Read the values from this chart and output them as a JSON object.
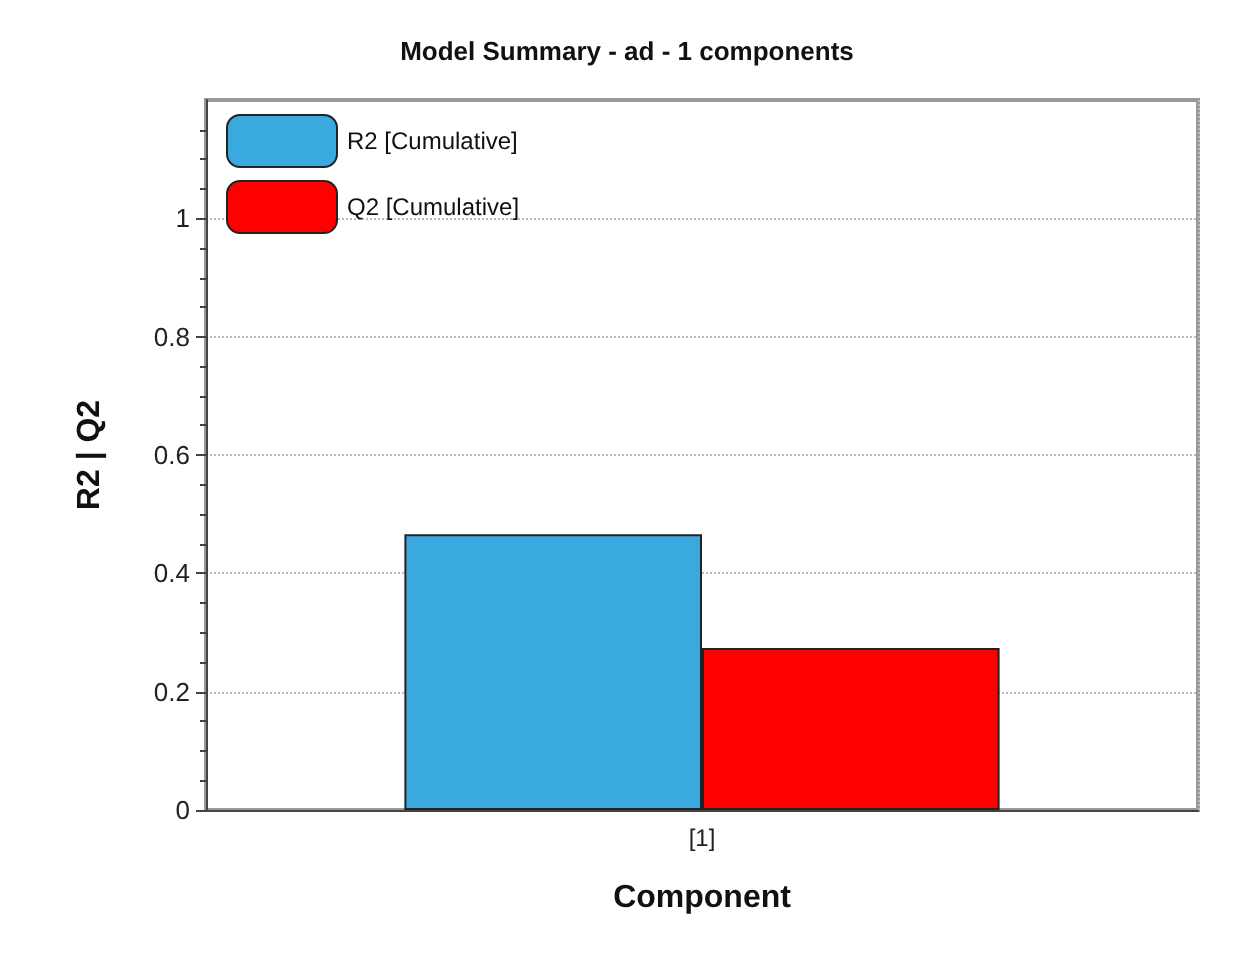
{
  "chart_data": {
    "type": "bar",
    "title": "Model Summary - ad - 1 components",
    "xlabel": "Component",
    "ylabel": "R2 | Q2",
    "categories": [
      "[1]"
    ],
    "series": [
      {
        "name": "R2 [Cumulative]",
        "color": "#3aa9e0",
        "values": [
          0.466
        ]
      },
      {
        "name": "Q2 [Cumulative]",
        "color": "#ff0000",
        "values": [
          0.274
        ]
      }
    ],
    "ylim": [
      0,
      1.2
    ],
    "yticks": [
      0,
      0.2,
      0.4,
      0.6,
      0.8,
      1
    ],
    "grid": true,
    "legend": "top left"
  }
}
